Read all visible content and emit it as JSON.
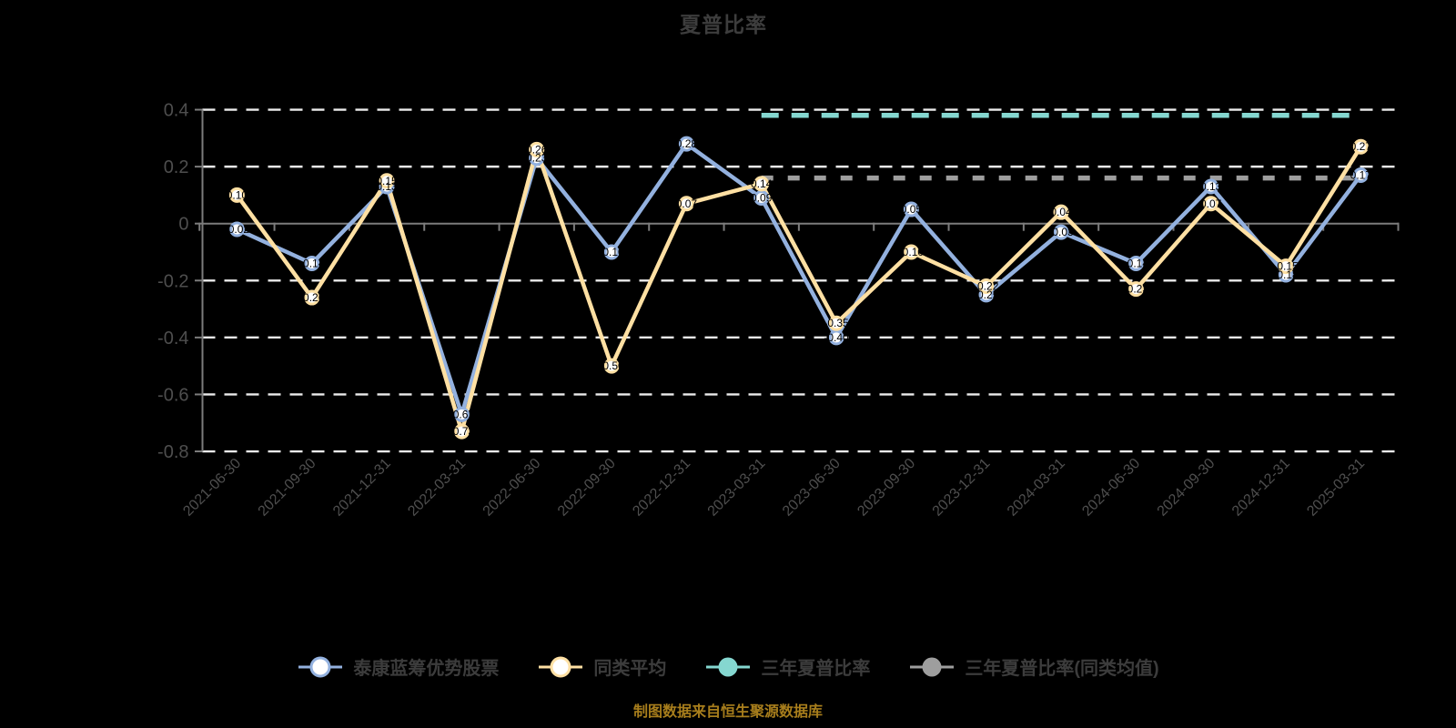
{
  "title": "夏普比率",
  "footer": "制图数据来自恒生聚源数据库",
  "colors": {
    "background": "#000000",
    "fund_line": "#93b1df",
    "peer_line": "#ffe0a3",
    "three_year_line": "#85d7d0",
    "three_year_peer_line": "#9e9e9e",
    "gridline": "#ececec",
    "axis": "#7c7c7c",
    "tick_text": "#4e4e4e",
    "title_text": "#3d3d3d",
    "footer_text": "#a87e1c",
    "marker_fill": "#ffffff",
    "point_label": "#000000"
  },
  "chart_data": {
    "type": "line",
    "title": "夏普比率",
    "xlabel": "",
    "ylabel": "",
    "ylim": [
      -0.8,
      0.4
    ],
    "yticks": [
      0.4,
      0.2,
      0,
      -0.2,
      -0.4,
      -0.6,
      -0.8
    ],
    "grid": "horizontal-dashed",
    "legend_position": "bottom",
    "categories": [
      "2021-06-30",
      "2021-09-30",
      "2021-12-31",
      "2022-03-31",
      "2022-06-30",
      "2022-09-30",
      "2022-12-31",
      "2023-03-31",
      "2023-06-30",
      "2023-09-30",
      "2023-12-31",
      "2024-03-31",
      "2024-06-30",
      "2024-09-30",
      "2024-12-31",
      "2025-03-31"
    ],
    "series": [
      {
        "name": "泰康蓝筹优势股票",
        "kind": "line",
        "color": "#93b1df",
        "marker": "hollow-circle",
        "values": [
          -0.02,
          -0.14,
          0.13,
          -0.67,
          0.23,
          -0.1,
          0.28,
          0.09,
          -0.4,
          0.05,
          -0.25,
          -0.03,
          -0.14,
          0.13,
          -0.18,
          0.17
        ]
      },
      {
        "name": "同类平均",
        "kind": "line",
        "color": "#ffe0a3",
        "marker": "hollow-circle",
        "values": [
          0.1,
          -0.26,
          0.15,
          -0.73,
          0.26,
          -0.5,
          0.07,
          0.14,
          -0.35,
          -0.1,
          -0.22,
          0.04,
          -0.23,
          0.07,
          -0.15,
          0.27
        ]
      },
      {
        "name": "三年夏普比率",
        "kind": "hline",
        "color": "#85d7d0",
        "marker": "filled-circle",
        "value": 0.38,
        "from_index": 7,
        "to_index": 15
      },
      {
        "name": "三年夏普比率(同类均值)",
        "kind": "hline",
        "color": "#9e9e9e",
        "marker": "filled-circle",
        "value": 0.16,
        "from_index": 7,
        "to_index": 15
      }
    ]
  }
}
